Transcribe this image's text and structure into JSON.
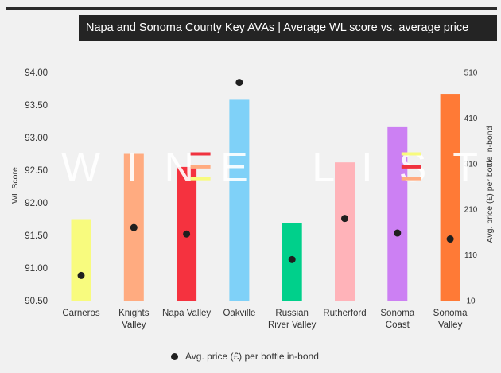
{
  "title": "Napa and Sonoma County Key AVAs | Average WL score vs. average price",
  "watermark": "WINE LISTER",
  "left_axis_label": "WL Score",
  "right_axis_label": "Avg. price (£) per bottle in-bond",
  "legend_label": "Avg. price (£) per bottle in-bond",
  "chart_data": {
    "type": "bar",
    "title": "Napa and Sonoma County Key AVAs | Average WL score vs. average price",
    "xlabel": "",
    "ylabel": "WL Score",
    "y2label": "Avg. price (£) per bottle in-bond",
    "ylim": [
      90.5,
      94.0
    ],
    "y2lim": [
      10,
      510
    ],
    "y_ticks": [
      "94.00",
      "93.50",
      "93.00",
      "92.50",
      "92.00",
      "91.50",
      "91.00",
      "90.50"
    ],
    "y2_ticks": [
      "510",
      "410",
      "310",
      "210",
      "110",
      "10"
    ],
    "categories": [
      "Carneros",
      "Knights Valley",
      "Napa Valley",
      "Oakville",
      "Russian River Valley",
      "Rutherford",
      "Sonoma Coast",
      "Sonoma Valley"
    ],
    "category_lines": [
      [
        "Carneros"
      ],
      [
        "Knights",
        "Valley"
      ],
      [
        "Napa Valley"
      ],
      [
        "Oakville"
      ],
      [
        "Russian",
        "River Valley"
      ],
      [
        "Rutherford"
      ],
      [
        "Sonoma",
        "Coast"
      ],
      [
        "Sonoma",
        "Valley"
      ]
    ],
    "colors": [
      "#f8fb7e",
      "#ffab80",
      "#f5323f",
      "#7fd1f8",
      "#00d08b",
      "#ffb3b9",
      "#cc80f3",
      "#ff7a36"
    ],
    "grid": false,
    "legend_position": "bottom",
    "series": [
      {
        "type": "bar",
        "axis": "left",
        "values": [
          91.75,
          92.75,
          92.55,
          93.58,
          91.69,
          92.62,
          93.16,
          93.67
        ]
      },
      {
        "name": "Avg. price (£) per bottle in-bond",
        "type": "scatter",
        "axis": "right",
        "values": [
          65,
          170,
          156,
          488,
          100,
          190,
          158,
          145
        ]
      }
    ],
    "dashes": [
      {
        "category": "Napa Valley",
        "values": [
          92.75,
          92.55,
          92.37
        ],
        "colors": [
          "#f0323f",
          "#ffab80",
          "#f8fb7e"
        ]
      },
      {
        "category": "Sonoma Coast",
        "values": [
          92.75,
          92.55,
          92.37
        ],
        "colors": [
          "#f8fb7e",
          "#f0323f",
          "#ffab80"
        ]
      }
    ]
  }
}
